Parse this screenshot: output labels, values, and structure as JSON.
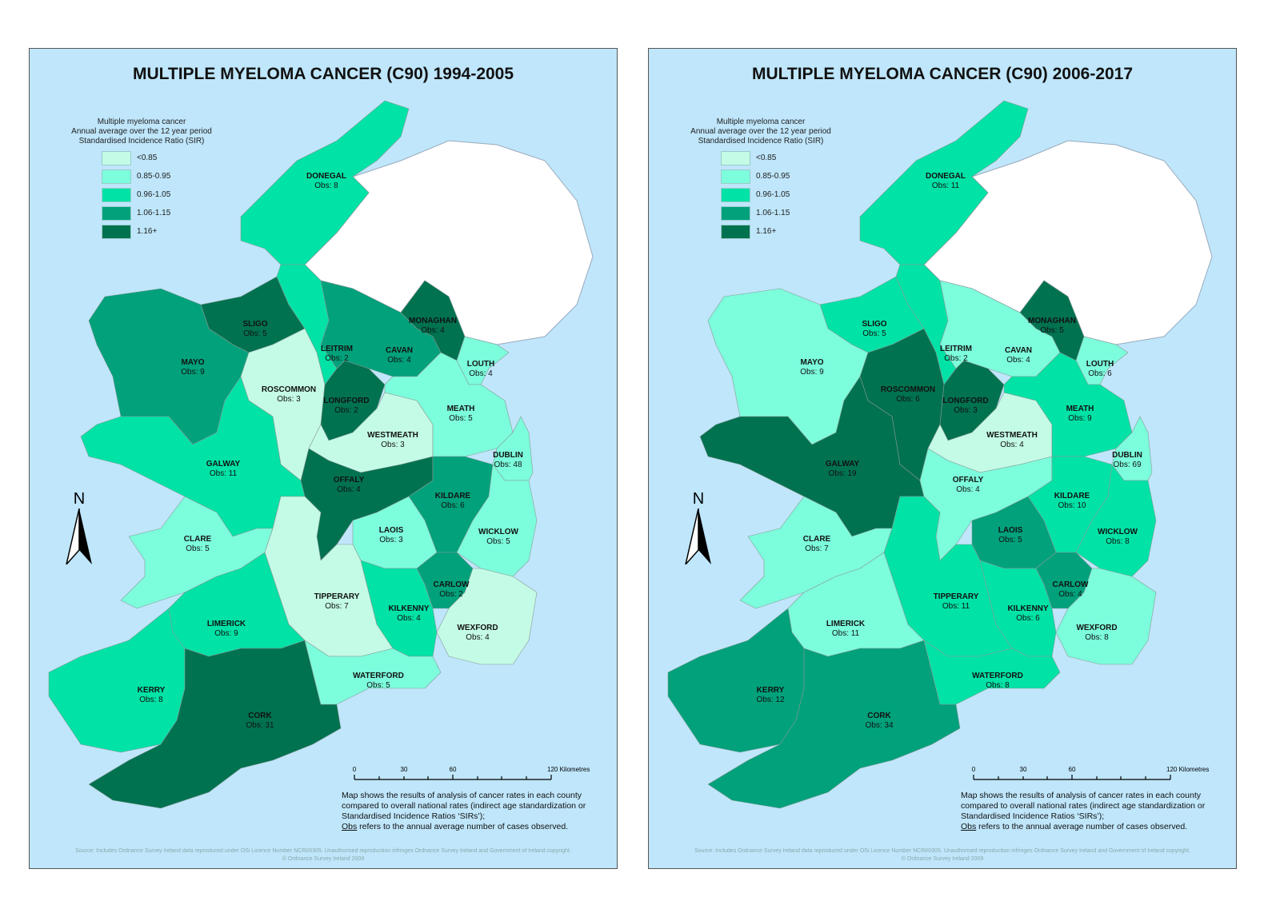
{
  "legend": {
    "heading": [
      "Multiple myeloma cancer",
      "Annual average over the 12 year period",
      "Standardised Incidence Ratio (SIR)"
    ],
    "classes": [
      {
        "label": "<0.85",
        "color": "#c4fbe6"
      },
      {
        "label": "0.85-0.95",
        "color": "#7cfddc"
      },
      {
        "label": "0.96-1.05",
        "color": "#00e2a6"
      },
      {
        "label": "1.06-1.15",
        "color": "#00a17b"
      },
      {
        "label": "1.16+",
        "color": "#007250"
      }
    ]
  },
  "colors": {
    "sea": "#bfe6fb",
    "northern_ireland": "#ffffff",
    "border": "#8a9a95"
  },
  "north_label": "N",
  "scale": {
    "ticks": [
      "0",
      "30",
      "60",
      "120 Kilometres"
    ]
  },
  "note": {
    "text": "Map shows the results of analysis of cancer rates in each county compared to overall national rates (indirect age standardization or Standardised Incidence Ratios ‘SIRs’);",
    "obs_word": "Obs",
    "obs_text": " refers to the annual average number of cases observed."
  },
  "source": [
    "Source: Includes Ordnance Survey Ireland data reproduced under OSi Licence Number NCRI/0305. Unauthorised reproduction infringes Ordnance Survey Ireland and Government of Ireland copyright.",
    "© Ordnance Survey Ireland 2009"
  ],
  "maps": [
    {
      "title": "MULTIPLE MYELOMA CANCER (C90) 1994-2005",
      "counties": [
        {
          "name": "DONEGAL",
          "obs": "Obs: 8",
          "class": 2
        },
        {
          "name": "SLIGO",
          "obs": "Obs: 5",
          "class": 4
        },
        {
          "name": "MAYO",
          "obs": "Obs: 9",
          "class": 3
        },
        {
          "name": "LEITRIM",
          "obs": "Obs: 2",
          "class": 2
        },
        {
          "name": "CAVAN",
          "obs": "Obs: 4",
          "class": 3
        },
        {
          "name": "MONAGHAN",
          "obs": "Obs: 4",
          "class": 4
        },
        {
          "name": "LOUTH",
          "obs": "Obs: 4",
          "class": 1
        },
        {
          "name": "ROSCOMMON",
          "obs": "Obs: 3",
          "class": 0
        },
        {
          "name": "LONGFORD",
          "obs": "Obs: 2",
          "class": 4
        },
        {
          "name": "WESTMEATH",
          "obs": "Obs: 3",
          "class": 0
        },
        {
          "name": "MEATH",
          "obs": "Obs: 5",
          "class": 1
        },
        {
          "name": "DUBLIN",
          "obs": "Obs: 48",
          "class": 1
        },
        {
          "name": "GALWAY",
          "obs": "Obs: 11",
          "class": 2
        },
        {
          "name": "OFFALY",
          "obs": "Obs: 4",
          "class": 4
        },
        {
          "name": "KILDARE",
          "obs": "Obs: 6",
          "class": 3
        },
        {
          "name": "LAOIS",
          "obs": "Obs: 3",
          "class": 1
        },
        {
          "name": "WICKLOW",
          "obs": "Obs: 5",
          "class": 1
        },
        {
          "name": "CLARE",
          "obs": "Obs: 5",
          "class": 1
        },
        {
          "name": "TIPPERARY",
          "obs": "Obs: 7",
          "class": 0
        },
        {
          "name": "KILKENNY",
          "obs": "Obs: 4",
          "class": 2
        },
        {
          "name": "CARLOW",
          "obs": "Obs: 2",
          "class": 3
        },
        {
          "name": "WEXFORD",
          "obs": "Obs: 4",
          "class": 0
        },
        {
          "name": "LIMERICK",
          "obs": "Obs: 9",
          "class": 2
        },
        {
          "name": "KERRY",
          "obs": "Obs: 8",
          "class": 2
        },
        {
          "name": "CORK",
          "obs": "Obs: 31",
          "class": 4
        },
        {
          "name": "WATERFORD",
          "obs": "Obs: 5",
          "class": 1
        }
      ]
    },
    {
      "title": "MULTIPLE MYELOMA CANCER (C90) 2006-2017",
      "counties": [
        {
          "name": "DONEGAL",
          "obs": "Obs: 11",
          "class": 2
        },
        {
          "name": "SLIGO",
          "obs": "Obs: 5",
          "class": 2
        },
        {
          "name": "MAYO",
          "obs": "Obs: 9",
          "class": 1
        },
        {
          "name": "LEITRIM",
          "obs": "Obs: 2",
          "class": 2
        },
        {
          "name": "CAVAN",
          "obs": "Obs: 4",
          "class": 1
        },
        {
          "name": "MONAGHAN",
          "obs": "Obs: 5",
          "class": 4
        },
        {
          "name": "LOUTH",
          "obs": "Obs: 6",
          "class": 1
        },
        {
          "name": "ROSCOMMON",
          "obs": "Obs: 6",
          "class": 4
        },
        {
          "name": "LONGFORD",
          "obs": "Obs: 3",
          "class": 4
        },
        {
          "name": "WESTMEATH",
          "obs": "Obs: 4",
          "class": 0
        },
        {
          "name": "MEATH",
          "obs": "Obs: 9",
          "class": 2
        },
        {
          "name": "DUBLIN",
          "obs": "Obs: 69",
          "class": 1
        },
        {
          "name": "GALWAY",
          "obs": "Obs: 19",
          "class": 4
        },
        {
          "name": "OFFALY",
          "obs": "Obs: 4",
          "class": 1
        },
        {
          "name": "KILDARE",
          "obs": "Obs: 10",
          "class": 2
        },
        {
          "name": "LAOIS",
          "obs": "Obs: 5",
          "class": 3
        },
        {
          "name": "WICKLOW",
          "obs": "Obs: 8",
          "class": 2
        },
        {
          "name": "CLARE",
          "obs": "Obs: 7",
          "class": 1
        },
        {
          "name": "TIPPERARY",
          "obs": "Obs: 11",
          "class": 2
        },
        {
          "name": "KILKENNY",
          "obs": "Obs: 6",
          "class": 2
        },
        {
          "name": "CARLOW",
          "obs": "Obs: 4",
          "class": 3
        },
        {
          "name": "WEXFORD",
          "obs": "Obs: 8",
          "class": 1
        },
        {
          "name": "LIMERICK",
          "obs": "Obs: 11",
          "class": 1
        },
        {
          "name": "KERRY",
          "obs": "Obs: 12",
          "class": 3
        },
        {
          "name": "CORK",
          "obs": "Obs: 34",
          "class": 3
        },
        {
          "name": "WATERFORD",
          "obs": "Obs: 8",
          "class": 2
        }
      ]
    }
  ]
}
